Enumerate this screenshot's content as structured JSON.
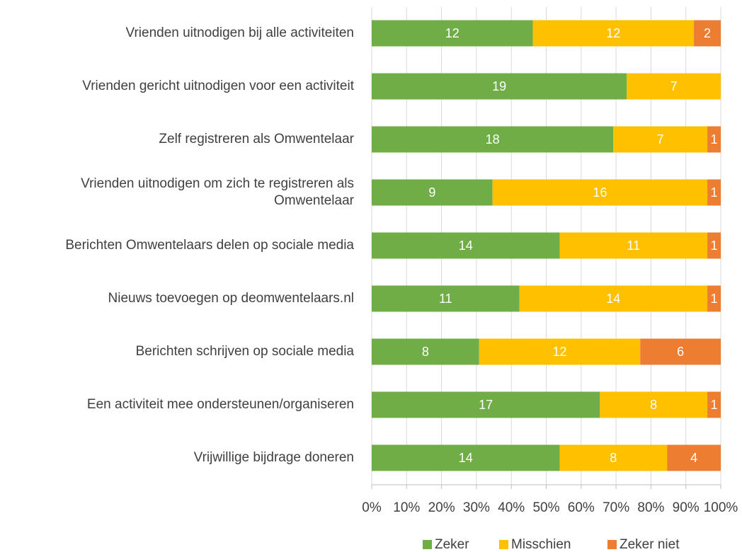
{
  "chart_data": {
    "type": "bar",
    "orientation": "horizontal",
    "stacking": "percent",
    "categories": [
      "Vrienden uitnodigen bij alle activiteiten",
      "Vrienden gericht uitnodigen voor een activiteit",
      "Zelf registreren als Omwentelaar",
      "Vrienden uitnodigen om zich te registreren als Omwentelaar",
      "Berichten Omwentelaars delen op sociale media",
      "Nieuws toevoegen op deomwentelaars.nl",
      "Berichten schrijven op sociale media",
      "Een activiteit mee ondersteunen/organiseren",
      "Vrijwillige bijdrage doneren"
    ],
    "series": [
      {
        "name": "Zeker",
        "color": "#70ad47",
        "values": [
          12,
          19,
          18,
          9,
          14,
          11,
          8,
          17,
          14
        ]
      },
      {
        "name": "Misschien",
        "color": "#ffc000",
        "values": [
          12,
          7,
          7,
          16,
          11,
          14,
          12,
          8,
          8
        ]
      },
      {
        "name": "Zeker niet",
        "color": "#ed7d31",
        "values": [
          2,
          0,
          1,
          1,
          1,
          1,
          6,
          1,
          4
        ]
      }
    ],
    "xlim": [
      0,
      100
    ],
    "xticks": [
      {
        "value": 0,
        "label": "0%"
      },
      {
        "value": 10,
        "label": "10%"
      },
      {
        "value": 20,
        "label": "20%"
      },
      {
        "value": 30,
        "label": "30%"
      },
      {
        "value": 40,
        "label": "40%"
      },
      {
        "value": 50,
        "label": "50%"
      },
      {
        "value": 60,
        "label": "60%"
      },
      {
        "value": 70,
        "label": "70%"
      },
      {
        "value": 80,
        "label": "80%"
      },
      {
        "value": 90,
        "label": "90%"
      },
      {
        "value": 100,
        "label": "100%"
      }
    ],
    "grid": true,
    "legend": "bottom"
  }
}
